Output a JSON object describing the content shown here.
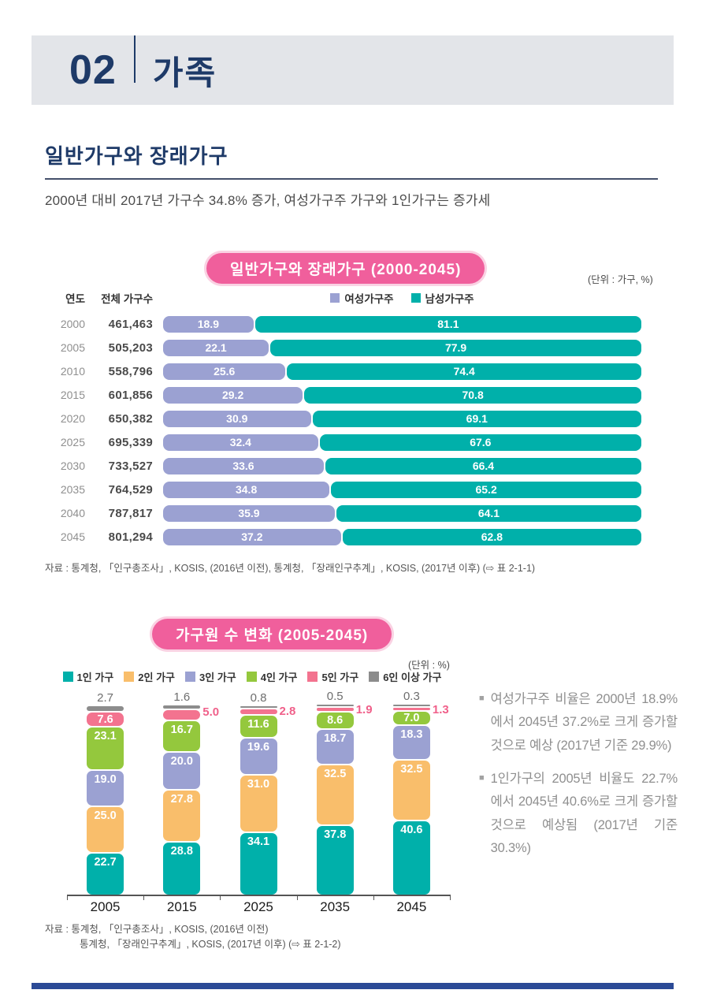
{
  "page": {
    "chapter_number": "02",
    "chapter_title": "가족",
    "section_title": "일반가구와 장래가구",
    "section_subtitle": "2000년 대비 2017년 가구수 34.8% 증가, 여성가구주 가구와 1인가구는 증가세"
  },
  "chart_data": [
    {
      "type": "bar",
      "orientation": "horizontal",
      "stacked": true,
      "title": "일반가구와 장래가구 (2000-2045)",
      "unit": "(단위 : 가구, %)",
      "columns": {
        "year": "연도",
        "total": "전체 가구수"
      },
      "legend_position": "top",
      "series_names": [
        "여성가구주",
        "남성가구주"
      ],
      "series_colors": [
        "#9ba1d2",
        "#00b0aa"
      ],
      "xlim": [
        0,
        100
      ],
      "rows": [
        {
          "year": "2000",
          "total": "461,463",
          "values": [
            18.9,
            81.1
          ]
        },
        {
          "year": "2005",
          "total": "505,203",
          "values": [
            22.1,
            77.9
          ]
        },
        {
          "year": "2010",
          "total": "558,796",
          "values": [
            25.6,
            74.4
          ]
        },
        {
          "year": "2015",
          "total": "601,856",
          "values": [
            29.2,
            70.8
          ]
        },
        {
          "year": "2020",
          "total": "650,382",
          "values": [
            30.9,
            69.1
          ]
        },
        {
          "year": "2025",
          "total": "695,339",
          "values": [
            32.4,
            67.6
          ]
        },
        {
          "year": "2030",
          "total": "733,527",
          "values": [
            33.6,
            66.4
          ]
        },
        {
          "year": "2035",
          "total": "764,529",
          "values": [
            34.8,
            65.2
          ]
        },
        {
          "year": "2040",
          "total": "787,817",
          "values": [
            35.9,
            64.1
          ]
        },
        {
          "year": "2045",
          "total": "801,294",
          "values": [
            37.2,
            62.8
          ]
        }
      ],
      "source": "자료 : 통계청, 「인구총조사」, KOSIS, (2016년 이전), 통계청, 「장래인구추계」, KOSIS, (2017년 이후) (⇨ 표 2-1-1)"
    },
    {
      "type": "bar",
      "orientation": "vertical",
      "stacked": true,
      "title": "가구원 수 변화 (2005-2045)",
      "unit": "(단위 : %)",
      "legend_position": "top",
      "ylim": [
        0,
        100
      ],
      "categories": [
        "2005",
        "2015",
        "2025",
        "2035",
        "2045"
      ],
      "series": [
        {
          "name": "1인 가구",
          "color": "#00b0aa",
          "values": [
            22.7,
            28.8,
            34.1,
            37.8,
            40.6
          ]
        },
        {
          "name": "2인 가구",
          "color": "#f9be6b",
          "values": [
            25.0,
            27.8,
            31.0,
            32.5,
            32.5
          ]
        },
        {
          "name": "3인 가구",
          "color": "#9ba1d2",
          "values": [
            19.0,
            20.0,
            19.6,
            18.7,
            18.3
          ]
        },
        {
          "name": "4인 가구",
          "color": "#94c83d",
          "values": [
            23.1,
            16.7,
            11.6,
            8.6,
            7.0
          ]
        },
        {
          "name": "5인 가구",
          "color": "#f3738f",
          "values": [
            7.6,
            5.0,
            2.8,
            1.9,
            1.3
          ]
        },
        {
          "name": "6인 이상 가구",
          "color": "#8c8c8c",
          "values": [
            2.7,
            1.6,
            0.8,
            0.5,
            0.3
          ]
        }
      ],
      "source_lines": [
        "자료 : 통계청, 「인구총조사」, KOSIS, (2016년 이전)",
        "통계청, 「장래인구추계」, KOSIS, (2017년 이후) (⇨ 표 2-1-2)"
      ]
    }
  ],
  "notes": [
    "여성가구주 비율은 2000년 18.9%에서 2045년 37.2%로 크게 증가할 것으로 예상 (2017년 기준 29.9%)",
    "1인가구의 2005년 비율도 22.7%에서 2045년 40.6%로 크게 증가할 것으로 예상됨 (2017년 기준 30.3%)"
  ]
}
